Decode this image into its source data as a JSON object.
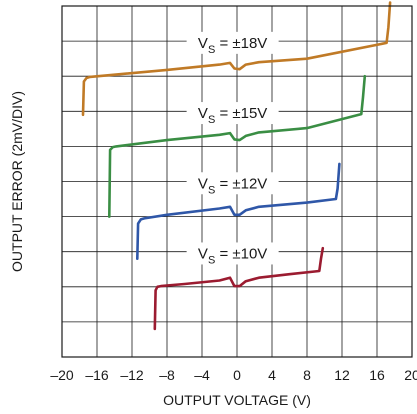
{
  "chart_data": {
    "type": "line",
    "title": "",
    "xlabel": "OUTPUT VOLTAGE (V)",
    "ylabel": "OUTPUT ERROR (2mV/DIV)",
    "xlim": [
      -20,
      20
    ],
    "ylim": [
      0,
      10
    ],
    "x_ticks": [
      -20,
      -16,
      -12,
      -8,
      -4,
      0,
      4,
      8,
      12,
      16,
      20
    ],
    "x_tick_labels": [
      "–20",
      "–16",
      "–12",
      "–8",
      "–4",
      "0",
      "4",
      "8",
      "12",
      "16",
      "20"
    ],
    "grid": true,
    "legend": "none",
    "series": [
      {
        "label_main": "V",
        "label_sub": "S",
        "label_rest": " = ±18V",
        "color": "#c07a26",
        "label_at": [
          -0.5,
          8.95
        ],
        "x": [
          -17.6,
          -17.5,
          -17.2,
          -16.8,
          -8,
          -2,
          -0.8,
          -0.3,
          0.3,
          1.0,
          2.5,
          8,
          17.1,
          17.3,
          17.5
        ],
        "y": [
          6.9,
          7.85,
          7.95,
          7.98,
          8.18,
          8.33,
          8.38,
          8.22,
          8.2,
          8.33,
          8.4,
          8.5,
          8.95,
          9.4,
          10.1
        ]
      },
      {
        "label_main": "V",
        "label_sub": "S",
        "label_rest": " = ±15V",
        "color": "#3a8e44",
        "label_at": [
          -0.5,
          6.95
        ],
        "x": [
          -14.6,
          -14.5,
          -14.2,
          -13.8,
          -8,
          -2,
          -0.8,
          -0.3,
          0.3,
          1.0,
          2.5,
          8,
          14.2,
          14.4,
          14.6
        ],
        "y": [
          4.0,
          5.9,
          5.98,
          6.0,
          6.18,
          6.33,
          6.38,
          6.2,
          6.18,
          6.3,
          6.4,
          6.52,
          6.92,
          7.4,
          8.0
        ]
      },
      {
        "label_main": "V",
        "label_sub": "S",
        "label_rest": " = ±12V",
        "color": "#2f57a8",
        "label_at": [
          -0.5,
          4.95
        ],
        "x": [
          -11.4,
          -11.3,
          -11.0,
          -10.6,
          -8,
          -2,
          -0.8,
          -0.3,
          0.3,
          1.0,
          2.5,
          8,
          11.3,
          11.5,
          11.7
        ],
        "y": [
          2.8,
          3.8,
          3.92,
          3.95,
          4.05,
          4.23,
          4.28,
          4.05,
          4.05,
          4.18,
          4.28,
          4.4,
          4.5,
          4.8,
          5.5
        ]
      },
      {
        "label_main": "V",
        "label_sub": "S",
        "label_rest": " = ±10V",
        "color": "#9b1b30",
        "label_at": [
          -0.5,
          2.95
        ],
        "x": [
          -9.4,
          -9.3,
          -9.1,
          -8.7,
          -6,
          -2,
          -0.8,
          -0.3,
          0.3,
          1.0,
          2.5,
          6,
          9.4,
          9.6,
          9.8
        ],
        "y": [
          0.8,
          1.9,
          2.0,
          2.02,
          2.08,
          2.18,
          2.26,
          2.02,
          2.02,
          2.16,
          2.26,
          2.36,
          2.45,
          2.8,
          3.1
        ]
      }
    ]
  }
}
